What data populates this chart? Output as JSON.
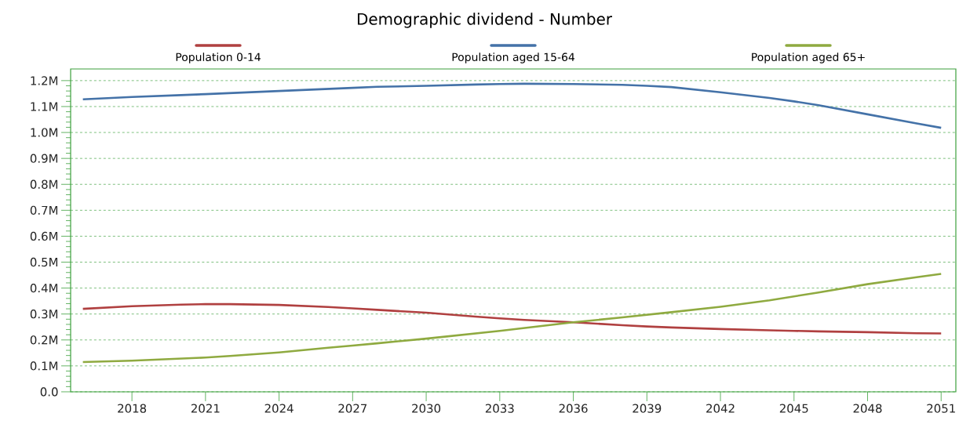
{
  "chart_data": {
    "type": "line",
    "title": "Demographic dividend - Number",
    "x": [
      2016,
      2018,
      2020,
      2021,
      2022,
      2024,
      2026,
      2027,
      2028,
      2030,
      2032,
      2033,
      2034,
      2036,
      2038,
      2039,
      2040,
      2042,
      2044,
      2045,
      2046,
      2048,
      2050,
      2051
    ],
    "series": [
      {
        "name": "Population 0-14",
        "color": "#b04040",
        "values": [
          0.32,
          0.33,
          0.336,
          0.338,
          0.338,
          0.335,
          0.327,
          0.322,
          0.316,
          0.305,
          0.29,
          0.283,
          0.277,
          0.268,
          0.257,
          0.252,
          0.248,
          0.242,
          0.237,
          0.235,
          0.233,
          0.23,
          0.226,
          0.225
        ]
      },
      {
        "name": "Population aged 15-64",
        "color": "#4472a8",
        "values": [
          1.128,
          1.137,
          1.144,
          1.148,
          1.152,
          1.16,
          1.168,
          1.172,
          1.176,
          1.18,
          1.185,
          1.187,
          1.188,
          1.187,
          1.184,
          1.18,
          1.175,
          1.155,
          1.133,
          1.12,
          1.105,
          1.07,
          1.035,
          1.018
        ]
      },
      {
        "name": "Population aged 65+",
        "color": "#8faa40",
        "values": [
          0.115,
          0.12,
          0.128,
          0.132,
          0.138,
          0.152,
          0.17,
          0.178,
          0.187,
          0.205,
          0.225,
          0.235,
          0.246,
          0.268,
          0.287,
          0.297,
          0.307,
          0.328,
          0.353,
          0.368,
          0.383,
          0.415,
          0.442,
          0.455
        ]
      }
    ],
    "xlim": [
      2015.5,
      2051.6
    ],
    "xticks": [
      2018,
      2021,
      2024,
      2027,
      2030,
      2033,
      2036,
      2039,
      2042,
      2045,
      2048,
      2051
    ],
    "ylim": [
      0,
      1.245
    ],
    "yticks": [
      {
        "value": 0,
        "label": "0.0"
      },
      {
        "value": 0.1,
        "label": "0.1M"
      },
      {
        "value": 0.2,
        "label": "0.2M"
      },
      {
        "value": 0.3,
        "label": "0.3M"
      },
      {
        "value": 0.4,
        "label": "0.4M"
      },
      {
        "value": 0.5,
        "label": "0.5M"
      },
      {
        "value": 0.6,
        "label": "0.6M"
      },
      {
        "value": 0.7,
        "label": "0.7M"
      },
      {
        "value": 0.8,
        "label": "0.8M"
      },
      {
        "value": 0.9,
        "label": "0.9M"
      },
      {
        "value": 1.0,
        "label": "1.0M"
      },
      {
        "value": 1.1,
        "label": "1.1M"
      },
      {
        "value": 1.2,
        "label": "1.2M"
      }
    ],
    "grid": "y",
    "legend": "top",
    "marker": "none",
    "line_style": "solid"
  }
}
